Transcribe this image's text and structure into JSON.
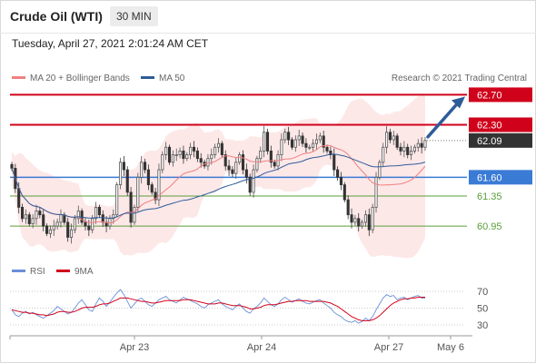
{
  "header": {
    "instrument": "Crude Oil (WTI)",
    "timeframe": "30 MIN",
    "timestamp": "Tuesday, April 27, 2021 2:01:24 AM CET"
  },
  "legend": {
    "ma20_label": "MA 20 + Bollinger Bands",
    "ma50_label": "MA 50",
    "copyright": "Research © 2021 Trading Central",
    "rsi_label": "RSI",
    "rsi_ma_label": "9MA"
  },
  "colors": {
    "up": "#555555",
    "down": "#333333",
    "ma20": "#f08080",
    "bands_fill": "#fde4e4",
    "ma50": "#2e5c99",
    "resistance": "#d0021b",
    "support_blue": "#3a7bd5",
    "support_green": "#5a9e3a",
    "current": "#333333",
    "arrow": "#2e5c99",
    "rsi": "#6a8fd8",
    "rsi_ma": "#d0021b"
  },
  "chart_data": {
    "type": "candlestick",
    "y_range": [
      60.6,
      62.85
    ],
    "x_labels": [
      "Apr 23",
      "Apr 24",
      "Apr 27",
      "May 6"
    ],
    "levels": [
      {
        "label": "62.70",
        "value": 62.7,
        "kind": "resistance"
      },
      {
        "label": "62.30",
        "value": 62.3,
        "kind": "resistance"
      },
      {
        "label": "62.09",
        "value": 62.09,
        "kind": "current"
      },
      {
        "label": "61.60",
        "value": 61.6,
        "kind": "support_blue"
      },
      {
        "label": "61.35",
        "value": 61.35,
        "kind": "support_green"
      },
      {
        "label": "60.95",
        "value": 60.95,
        "kind": "support_green"
      }
    ],
    "close": [
      61.72,
      61.45,
      61.2,
      61.05,
      61.1,
      60.98,
      61.05,
      61.15,
      61.1,
      60.95,
      60.85,
      60.9,
      60.95,
      61.0,
      61.1,
      61.0,
      60.8,
      60.9,
      61.05,
      61.15,
      61.0,
      60.95,
      60.9,
      61.05,
      61.2,
      61.1,
      61.0,
      60.95,
      61.05,
      61.1,
      61.5,
      61.8,
      61.7,
      61.4,
      61.0,
      61.2,
      61.6,
      61.8,
      61.7,
      61.5,
      61.4,
      61.3,
      61.7,
      61.9,
      62.0,
      61.8,
      61.9,
      61.9,
      61.95,
      61.85,
      61.9,
      62.0,
      61.95,
      61.85,
      61.8,
      61.75,
      61.85,
      61.9,
      62.0,
      62.05,
      61.9,
      61.75,
      61.7,
      61.65,
      61.8,
      61.9,
      61.7,
      61.6,
      61.4,
      61.7,
      61.85,
      61.95,
      62.2,
      61.95,
      61.8,
      61.75,
      61.9,
      62.1,
      62.2,
      62.1,
      62.0,
      62.1,
      62.15,
      62.05,
      62.0,
      62.0,
      62.05,
      62.1,
      62.15,
      62.0,
      61.95,
      61.9,
      61.7,
      61.6,
      61.5,
      61.3,
      61.1,
      61.0,
      61.05,
      60.95,
      61.0,
      61.1,
      60.9,
      61.2,
      61.6,
      61.8,
      62.0,
      62.2,
      62.1,
      62.15,
      62.0,
      61.95,
      62.0,
      61.9,
      61.95,
      62.0,
      62.05,
      62.0,
      62.09
    ],
    "rsi": {
      "y_ticks": [
        70,
        50,
        30
      ],
      "range": [
        20,
        80
      ],
      "rsi": [
        48,
        42,
        40,
        44,
        46,
        43,
        45,
        42,
        40,
        38,
        41,
        44,
        47,
        52,
        49,
        46,
        43,
        45,
        50,
        56,
        60,
        54,
        48,
        46,
        55,
        62,
        58,
        52,
        57,
        63,
        68,
        72,
        66,
        58,
        50,
        55,
        60,
        62,
        58,
        54,
        52,
        56,
        60,
        62,
        64,
        60,
        58,
        56,
        60,
        63,
        61,
        59,
        57,
        55,
        52,
        50,
        54,
        56,
        58,
        60,
        55,
        52,
        50,
        48,
        52,
        55,
        50,
        46,
        44,
        49,
        52,
        56,
        62,
        58,
        54,
        52,
        55,
        60,
        63,
        60,
        57,
        59,
        61,
        58,
        56,
        55,
        57,
        59,
        60,
        56,
        53,
        50,
        45,
        42,
        40,
        36,
        34,
        33,
        35,
        32,
        34,
        38,
        35,
        40,
        48,
        55,
        62,
        66,
        64,
        65,
        60,
        62,
        63,
        60,
        62,
        64,
        65,
        62,
        62
      ],
      "ma9": [
        48,
        47,
        46,
        45,
        45,
        44,
        44,
        43,
        42,
        42,
        41,
        42,
        43,
        45,
        46,
        46,
        45,
        45,
        46,
        48,
        50,
        51,
        51,
        51,
        52,
        54,
        55,
        55,
        56,
        58,
        60,
        62,
        62,
        62,
        61,
        60,
        59,
        58,
        58,
        57,
        56,
        56,
        57,
        58,
        59,
        59,
        59,
        59,
        59,
        60,
        60,
        60,
        59,
        58,
        57,
        56,
        55,
        55,
        55,
        56,
        56,
        55,
        54,
        53,
        53,
        53,
        52,
        51,
        49,
        49,
        50,
        51,
        53,
        54,
        54,
        54,
        55,
        56,
        57,
        58,
        58,
        59,
        59,
        59,
        59,
        58,
        58,
        58,
        58,
        58,
        57,
        56,
        54,
        52,
        49,
        46,
        43,
        40,
        38,
        36,
        35,
        35,
        35,
        36,
        38,
        41,
        45,
        49,
        53,
        56,
        58,
        60,
        61,
        61,
        62,
        62,
        63,
        63,
        63
      ]
    }
  }
}
